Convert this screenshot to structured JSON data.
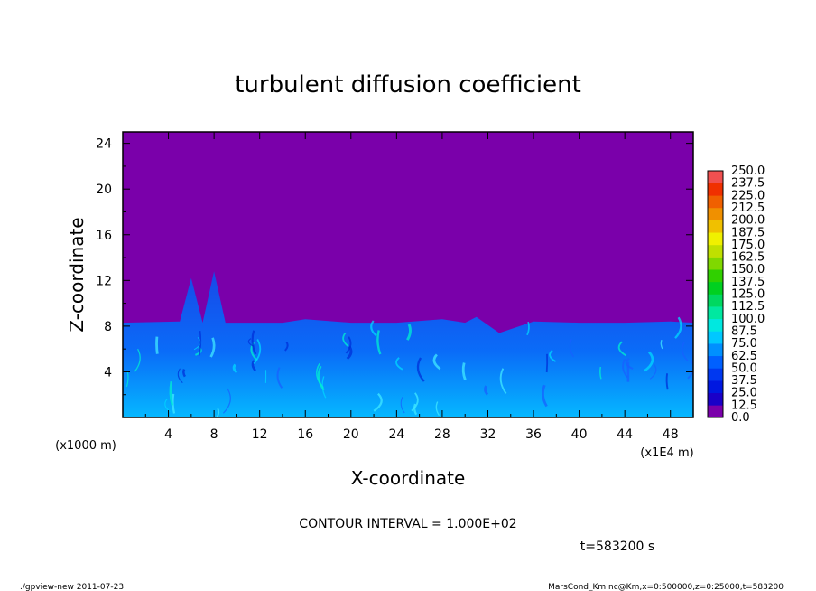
{
  "chart_data": {
    "type": "heatmap",
    "title": "turbulent diffusion coefficient",
    "xlabel": "X-coordinate",
    "ylabel": "Z-coordinate",
    "x_unit": "(x1E4 m)",
    "y_unit": "(x1000 m)",
    "xlim": [
      0,
      50
    ],
    "ylim": [
      0,
      25
    ],
    "x_ticks": [
      4,
      8,
      12,
      16,
      20,
      24,
      28,
      32,
      36,
      40,
      44,
      48
    ],
    "y_ticks": [
      4,
      8,
      12,
      16,
      20,
      24
    ],
    "colorbar": {
      "levels": [
        "0.0",
        "12.5",
        "25.0",
        "37.5",
        "50.0",
        "62.5",
        "75.0",
        "87.5",
        "100.0",
        "112.5",
        "125.0",
        "137.5",
        "150.0",
        "162.5",
        "175.0",
        "187.5",
        "200.0",
        "212.5",
        "225.0",
        "237.5",
        "250.0"
      ],
      "colors": [
        "#7a00aa",
        "#1a00c8",
        "#0018e0",
        "#0038f0",
        "#0060ff",
        "#0090ff",
        "#00c8ff",
        "#00e8e0",
        "#00e8a0",
        "#00d860",
        "#00d020",
        "#30d000",
        "#80d800",
        "#c0e000",
        "#f0f000",
        "#f0c000",
        "#f09000",
        "#f06000",
        "#f03000",
        "#f05050",
        "#f0a0a0"
      ]
    },
    "boundary_layer_top": [
      [
        0,
        8.3
      ],
      [
        5,
        8.4
      ],
      [
        6,
        12.2
      ],
      [
        7,
        8.3
      ],
      [
        8,
        12.8
      ],
      [
        9,
        8.3
      ],
      [
        14,
        8.3
      ],
      [
        16,
        8.6
      ],
      [
        20,
        8.3
      ],
      [
        24,
        8.3
      ],
      [
        28,
        8.6
      ],
      [
        30,
        8.3
      ],
      [
        31,
        8.8
      ],
      [
        33,
        7.4
      ],
      [
        36,
        8.4
      ],
      [
        40,
        8.3
      ],
      [
        44,
        8.3
      ],
      [
        48,
        8.4
      ],
      [
        50,
        8.3
      ]
    ],
    "contour_interval": "CONTOUR INTERVAL = 1.000E+02",
    "time_label": "t=583200 s"
  },
  "footer": {
    "left": "./gpview-new  2011-07-23",
    "right": "MarsCond_Km.nc@Km,x=0:500000,z=0:25000,t=583200"
  }
}
